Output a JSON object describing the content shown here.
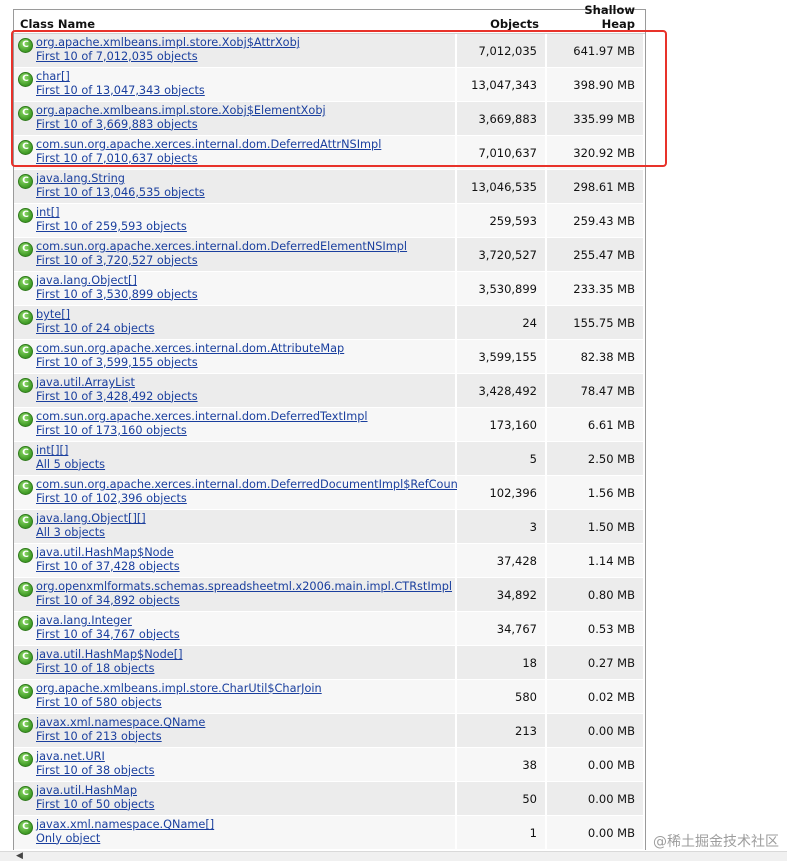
{
  "header": {
    "class_name": "Class Name",
    "objects": "Objects",
    "shallow_heap": "Shallow Heap"
  },
  "rows": [
    {
      "name": "org.apache.xmlbeans.impl.store.Xobj$AttrXobj",
      "sub": "First 10 of 7,012,035 objects",
      "objects": "7,012,035",
      "heap": "641.97 MB"
    },
    {
      "name": "char[]",
      "sub": "First 10 of 13,047,343 objects",
      "objects": "13,047,343",
      "heap": "398.90 MB"
    },
    {
      "name": "org.apache.xmlbeans.impl.store.Xobj$ElementXobj",
      "sub": "First 10 of 3,669,883 objects",
      "objects": "3,669,883",
      "heap": "335.99 MB"
    },
    {
      "name": "com.sun.org.apache.xerces.internal.dom.DeferredAttrNSImpl",
      "sub": "First 10 of 7,010,637 objects",
      "objects": "7,010,637",
      "heap": "320.92 MB"
    },
    {
      "name": "java.lang.String",
      "sub": "First 10 of 13,046,535 objects",
      "objects": "13,046,535",
      "heap": "298.61 MB"
    },
    {
      "name": "int[]",
      "sub": "First 10 of 259,593 objects",
      "objects": "259,593",
      "heap": "259.43 MB"
    },
    {
      "name": "com.sun.org.apache.xerces.internal.dom.DeferredElementNSImpl",
      "sub": "First 10 of 3,720,527 objects",
      "objects": "3,720,527",
      "heap": "255.47 MB"
    },
    {
      "name": "java.lang.Object[]",
      "sub": "First 10 of 3,530,899 objects",
      "objects": "3,530,899",
      "heap": "233.35 MB"
    },
    {
      "name": "byte[]",
      "sub": "First 10 of 24 objects",
      "objects": "24",
      "heap": "155.75 MB"
    },
    {
      "name": "com.sun.org.apache.xerces.internal.dom.AttributeMap",
      "sub": "First 10 of 3,599,155 objects",
      "objects": "3,599,155",
      "heap": "82.38 MB"
    },
    {
      "name": "java.util.ArrayList",
      "sub": "First 10 of 3,428,492 objects",
      "objects": "3,428,492",
      "heap": "78.47 MB"
    },
    {
      "name": "com.sun.org.apache.xerces.internal.dom.DeferredTextImpl",
      "sub": "First 10 of 173,160 objects",
      "objects": "173,160",
      "heap": "6.61 MB"
    },
    {
      "name": "int[][]",
      "sub": "All 5 objects",
      "objects": "5",
      "heap": "2.50 MB"
    },
    {
      "name": "com.sun.org.apache.xerces.internal.dom.DeferredDocumentImpl$RefCount",
      "sub": "First 10 of 102,396 objects",
      "objects": "102,396",
      "heap": "1.56 MB"
    },
    {
      "name": "java.lang.Object[][]",
      "sub": "All 3 objects",
      "objects": "3",
      "heap": "1.50 MB"
    },
    {
      "name": "java.util.HashMap$Node",
      "sub": "First 10 of 37,428 objects",
      "objects": "37,428",
      "heap": "1.14 MB"
    },
    {
      "name": "org.openxmlformats.schemas.spreadsheetml.x2006.main.impl.CTRstImpl",
      "sub": "First 10 of 34,892 objects",
      "objects": "34,892",
      "heap": "0.80 MB"
    },
    {
      "name": "java.lang.Integer",
      "sub": "First 10 of 34,767 objects",
      "objects": "34,767",
      "heap": "0.53 MB"
    },
    {
      "name": "java.util.HashMap$Node[]",
      "sub": "First 10 of 18 objects",
      "objects": "18",
      "heap": "0.27 MB"
    },
    {
      "name": "org.apache.xmlbeans.impl.store.CharUtil$CharJoin",
      "sub": "First 10 of 580 objects",
      "objects": "580",
      "heap": "0.02 MB"
    },
    {
      "name": "javax.xml.namespace.QName",
      "sub": "First 10 of 213 objects",
      "objects": "213",
      "heap": "0.00 MB"
    },
    {
      "name": "java.net.URI",
      "sub": "First 10 of 38 objects",
      "objects": "38",
      "heap": "0.00 MB"
    },
    {
      "name": "java.util.HashMap",
      "sub": "First 10 of 50 objects",
      "objects": "50",
      "heap": "0.00 MB"
    },
    {
      "name": "javax.xml.namespace.QName[]",
      "sub": "Only object",
      "objects": "1",
      "heap": "0.00 MB"
    }
  ],
  "icon": {
    "letter": "C",
    "name": "class-icon"
  },
  "watermark": "@稀土掘金技术社区"
}
